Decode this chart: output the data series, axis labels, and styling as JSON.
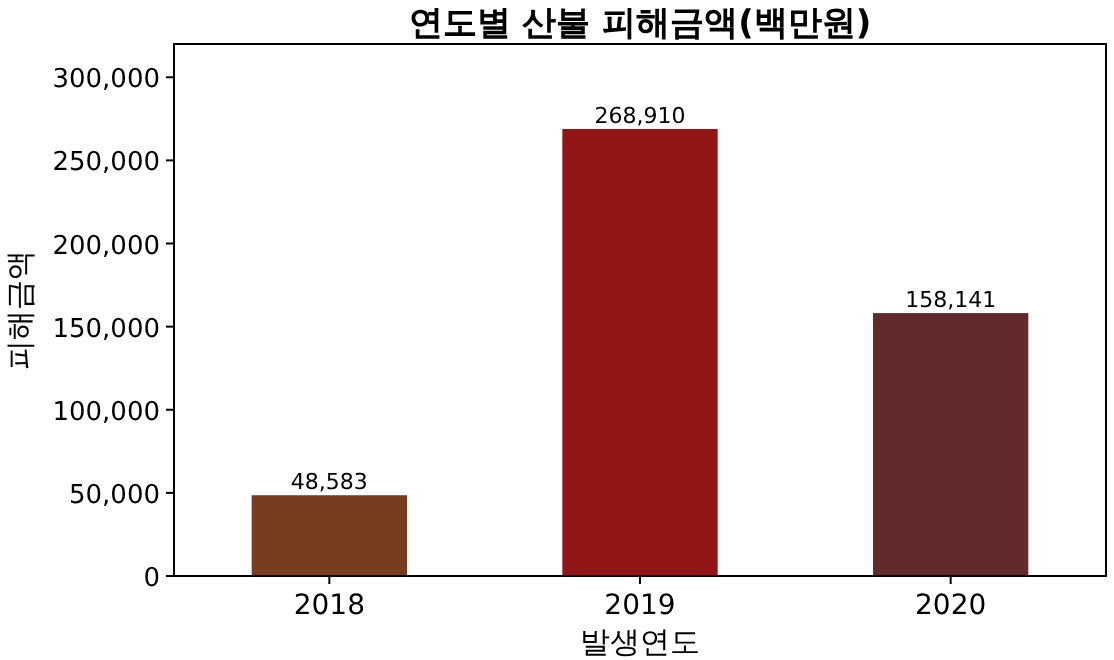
{
  "chart_data": {
    "type": "bar",
    "title": "연도별 산불 피해금액(백만원)",
    "xlabel": "발생연도",
    "ylabel": "피해금액",
    "categories": [
      "2018",
      "2019",
      "2020"
    ],
    "values": [
      48583,
      268910,
      158141
    ],
    "colors": [
      "#783c1e",
      "#921616",
      "#622a2a"
    ],
    "value_labels": [
      "48,583",
      "268,910",
      "158,141"
    ],
    "ylim": [
      0,
      320000
    ],
    "yticks": [
      {
        "value": 0,
        "label": "0"
      },
      {
        "value": 50000,
        "label": "50,000"
      },
      {
        "value": 100000,
        "label": "100,000"
      },
      {
        "value": 150000,
        "label": "150,000"
      },
      {
        "value": 200000,
        "label": "200,000"
      },
      {
        "value": 250000,
        "label": "250,000"
      },
      {
        "value": 300000,
        "label": "300,000"
      }
    ],
    "grid": false
  }
}
